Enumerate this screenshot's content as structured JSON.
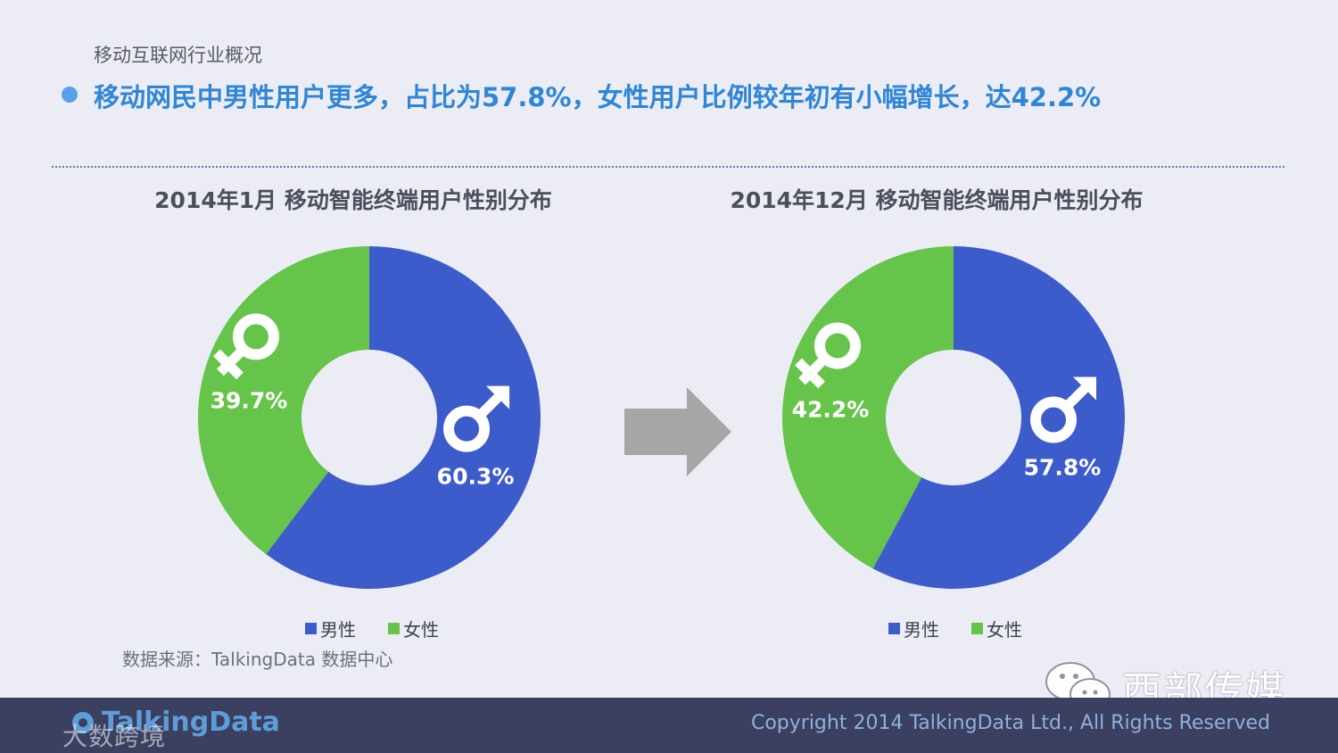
{
  "header": {
    "section_label": "移动互联网行业概况",
    "headline": "移动网民中男性用户更多，占比为57.8%，女性用户比例较年初有小幅增长，达42.2%"
  },
  "chart_data": [
    {
      "type": "pie",
      "title": "2014年1月 移动智能终端用户性别分布",
      "categories": [
        "男性",
        "女性"
      ],
      "values": [
        60.3,
        39.7
      ],
      "value_labels": [
        "60.3%",
        "39.7%"
      ],
      "colors": [
        "#3d5ccc",
        "#66c44a"
      ],
      "donut": true,
      "legend_placement": "bottom"
    },
    {
      "type": "pie",
      "title": "2014年12月 移动智能终端用户性别分布",
      "categories": [
        "男性",
        "女性"
      ],
      "values": [
        57.8,
        42.2
      ],
      "value_labels": [
        "57.8%",
        "42.2%"
      ],
      "colors": [
        "#3d5ccc",
        "#66c44a"
      ],
      "donut": true,
      "legend_placement": "bottom"
    }
  ],
  "legend": {
    "male": "男性",
    "female": "女性"
  },
  "source": "数据来源：TalkingData 数据中心",
  "icons": {
    "male": "male-symbol-icon",
    "female": "female-symbol-icon",
    "arrow": "right-arrow-icon"
  },
  "watermark": {
    "text": "西部传媒"
  },
  "footer": {
    "logo_text": "TalkingData",
    "overlay_text": "大数跨境",
    "copyright": "Copyright 2014 TalkingData Ltd., All Rights Reserved"
  }
}
